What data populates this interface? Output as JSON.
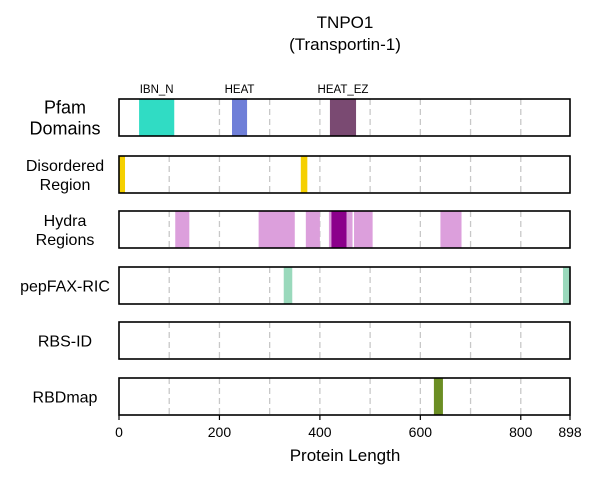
{
  "chart_data": {
    "type": "track",
    "title": "TNPO1",
    "subtitle": "(Transportin-1)",
    "xlabel": "Protein Length",
    "xlim": [
      0,
      898
    ],
    "xticks": [
      0,
      200,
      400,
      600,
      800,
      898
    ],
    "grid_x": [
      100,
      200,
      300,
      400,
      500,
      600,
      700,
      800
    ],
    "grid": true,
    "tracks": [
      {
        "label_lines": [
          "Pfam",
          "Domains"
        ],
        "features": [
          {
            "name": "IBN_N",
            "start": 40,
            "end": 110,
            "color": "#30dcc4"
          },
          {
            "name": "HEAT",
            "start": 225,
            "end": 255,
            "color": "#6f7fd8"
          },
          {
            "name": "HEAT_EZ",
            "start": 420,
            "end": 472,
            "color": "#7a4a72"
          }
        ]
      },
      {
        "label_lines": [
          "Disordered",
          "Region"
        ],
        "features": [
          {
            "start": 0,
            "end": 12,
            "color": "#f5d000"
          },
          {
            "start": 362,
            "end": 375,
            "color": "#f5d000"
          }
        ]
      },
      {
        "label_lines": [
          "Hydra",
          "Regions"
        ],
        "features": [
          {
            "start": 112,
            "end": 140,
            "color": "#dc9fdc"
          },
          {
            "start": 278,
            "end": 350,
            "color": "#dc9fdc"
          },
          {
            "start": 372,
            "end": 400,
            "color": "#dc9fdc"
          },
          {
            "start": 418,
            "end": 465,
            "color": "#dc9fdc"
          },
          {
            "start": 423,
            "end": 453,
            "color": "#8b008b"
          },
          {
            "start": 468,
            "end": 505,
            "color": "#dc9fdc"
          },
          {
            "start": 640,
            "end": 682,
            "color": "#dc9fdc"
          }
        ]
      },
      {
        "label_lines": [
          "pepFAX-RIC"
        ],
        "features": [
          {
            "start": 328,
            "end": 345,
            "color": "#9ad9bc"
          },
          {
            "start": 884,
            "end": 898,
            "color": "#9ad9bc"
          }
        ]
      },
      {
        "label_lines": [
          "RBS-ID"
        ],
        "features": []
      },
      {
        "label_lines": [
          "RBDmap"
        ],
        "features": [
          {
            "start": 627,
            "end": 645,
            "color": "#6b8e23"
          }
        ]
      }
    ]
  }
}
